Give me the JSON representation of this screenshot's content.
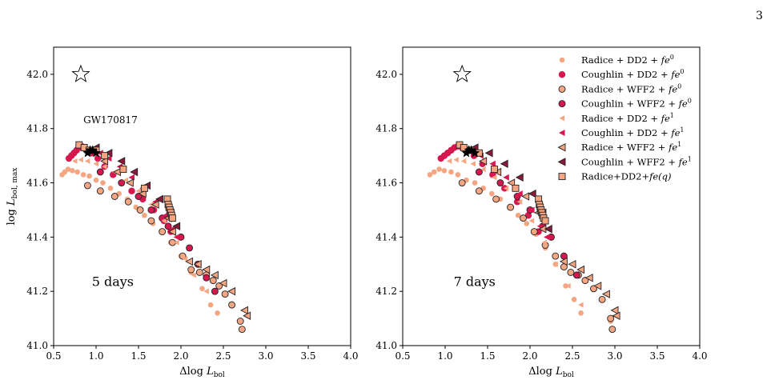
{
  "page_number": "3",
  "chart_data": [
    {
      "type": "scatter",
      "title": "",
      "xlabel": "Δlog L_bol",
      "ylabel": "log L_bol, max",
      "xlim": [
        0.5,
        4.0
      ],
      "ylim": [
        41.0,
        42.1
      ],
      "xticks": [
        "0.5",
        "1.0",
        "1.5",
        "2.0",
        "2.5",
        "3.0",
        "3.5",
        "4.0"
      ],
      "yticks": [
        "41.0",
        "41.2",
        "41.4",
        "41.6",
        "41.8",
        "42.0"
      ],
      "grid": false,
      "legend": false,
      "annotations": [
        {
          "text": "5 days",
          "x": 0.95,
          "y": 41.22
        },
        {
          "text": "GW170817",
          "x": 0.85,
          "y": 41.82
        }
      ],
      "reference_star": {
        "x": 0.82,
        "y": 42.0
      },
      "series": [
        {
          "name": "Radice + DD2 + fe0",
          "marker": "circle-small",
          "color": "#f4a582",
          "x": [
            0.6,
            0.63,
            0.67,
            0.72,
            0.78,
            0.85,
            0.92,
            1.0,
            1.08,
            1.17,
            1.27,
            1.37,
            1.47,
            1.57,
            1.67,
            1.78,
            1.88,
            2.0,
            2.12,
            2.25,
            2.35,
            2.43
          ],
          "y": [
            41.63,
            41.64,
            41.65,
            41.645,
            41.64,
            41.63,
            41.625,
            41.61,
            41.6,
            41.58,
            41.56,
            41.54,
            41.51,
            41.48,
            41.45,
            41.42,
            41.38,
            41.33,
            41.27,
            41.21,
            41.15,
            41.12
          ]
        },
        {
          "name": "Coughlin + DD2 + fe0",
          "marker": "circle",
          "color": "#d6184f",
          "x": [
            0.68,
            0.71,
            0.74,
            0.77,
            0.8,
            0.83,
            0.86,
            0.9,
            0.95,
            1.02,
            1.1,
            1.2,
            1.3,
            1.42,
            1.55,
            1.68,
            1.8,
            1.88
          ],
          "y": [
            41.69,
            41.7,
            41.71,
            41.72,
            41.73,
            41.735,
            41.73,
            41.72,
            41.71,
            41.69,
            41.66,
            41.63,
            41.6,
            41.57,
            41.54,
            41.5,
            41.46,
            41.42
          ]
        },
        {
          "name": "Radice + WFF2 + fe0",
          "marker": "circle-outline",
          "color": "#f4a582",
          "x": [
            0.9,
            1.05,
            1.22,
            1.38,
            1.52,
            1.65,
            1.78,
            1.9,
            2.02,
            2.12,
            2.22,
            2.3,
            2.38,
            2.45,
            2.52,
            2.6,
            2.7,
            2.72
          ],
          "y": [
            41.59,
            41.57,
            41.55,
            41.53,
            41.5,
            41.46,
            41.42,
            41.38,
            41.33,
            41.28,
            41.27,
            41.26,
            41.24,
            41.22,
            41.19,
            41.15,
            41.09,
            41.06
          ]
        },
        {
          "name": "Coughlin + WFF2 + fe0",
          "marker": "circle-outline",
          "color": "#d6184f",
          "x": [
            1.05,
            1.3,
            1.5,
            1.65,
            1.78,
            1.85,
            2.0,
            2.1,
            2.2,
            2.3,
            2.4
          ],
          "y": [
            41.64,
            41.6,
            41.55,
            41.5,
            41.47,
            41.44,
            41.4,
            41.36,
            41.3,
            41.25,
            41.2
          ]
        },
        {
          "name": "Radice + DD2 + fe1",
          "marker": "triangle-left-small",
          "color": "#f4a582",
          "x": [
            0.75,
            0.82,
            0.9,
            1.0,
            1.1,
            1.22,
            1.35,
            1.5,
            1.65,
            1.8,
            1.95,
            2.05,
            2.15,
            2.3
          ],
          "y": [
            41.68,
            41.685,
            41.68,
            41.67,
            41.66,
            41.64,
            41.61,
            41.57,
            41.52,
            41.46,
            41.38,
            41.32,
            41.26,
            41.2
          ]
        },
        {
          "name": "Coughlin + DD2 + fe1",
          "marker": "triangle-left",
          "color": "#d6184f",
          "x": [
            0.95,
            1.05,
            1.15,
            1.28,
            1.42,
            1.55,
            1.7,
            1.82,
            1.9,
            1.95
          ],
          "y": [
            41.72,
            41.71,
            41.69,
            41.66,
            41.62,
            41.58,
            41.53,
            41.48,
            41.43,
            41.4
          ]
        },
        {
          "name": "Radice + WFF2 + fe1",
          "marker": "triangle-left-outline",
          "color": "#f4a582",
          "x": [
            0.95,
            1.1,
            1.25,
            1.4,
            1.55,
            1.7,
            1.85,
            1.9,
            2.1,
            2.2,
            2.3,
            2.4,
            2.5,
            2.6,
            2.75,
            2.78
          ],
          "y": [
            41.72,
            41.68,
            41.64,
            41.6,
            41.56,
            41.52,
            41.47,
            41.42,
            41.31,
            41.3,
            41.28,
            41.26,
            41.23,
            41.2,
            41.13,
            41.11
          ]
        },
        {
          "name": "Coughlin + WFF2 + fe1",
          "marker": "triangle-left-outline",
          "color": "#8b1a3a",
          "x": [
            1.0,
            1.15,
            1.3,
            1.45,
            1.6,
            1.75,
            1.88,
            1.95
          ],
          "y": [
            41.73,
            41.71,
            41.68,
            41.64,
            41.59,
            41.54,
            41.49,
            41.44
          ]
        },
        {
          "name": "Radice+DD2+fe(q)",
          "marker": "square-outline",
          "color": "#f4a582",
          "x": [
            0.8,
            0.86,
            0.92,
            1.0,
            1.1,
            1.32,
            1.57,
            1.84,
            1.85,
            1.86,
            1.87,
            1.88,
            1.89,
            1.9
          ],
          "y": [
            41.74,
            41.73,
            41.72,
            41.72,
            41.7,
            41.65,
            41.58,
            41.54,
            41.52,
            41.51,
            41.5,
            41.49,
            41.48,
            41.47
          ]
        }
      ],
      "gw_points": {
        "x": [
          0.9,
          0.93,
          0.96,
          1.0
        ],
        "y": [
          41.71,
          41.72,
          41.72,
          41.71
        ]
      }
    },
    {
      "type": "scatter",
      "title": "",
      "xlabel": "Δlog L_bol",
      "ylabel": "",
      "xlim": [
        0.5,
        4.0
      ],
      "ylim": [
        41.0,
        42.1
      ],
      "xticks": [
        "0.5",
        "1.0",
        "1.5",
        "2.0",
        "2.5",
        "3.0",
        "3.5",
        "4.0"
      ],
      "yticks": [
        "41.0",
        "41.2",
        "41.4",
        "41.6",
        "41.8",
        "42.0"
      ],
      "grid": false,
      "legend": "top-right",
      "annotations": [
        {
          "text": "7 days",
          "x": 1.1,
          "y": 41.22
        }
      ],
      "reference_star": {
        "x": 1.2,
        "y": 42.0
      },
      "series": [
        {
          "name": "Radice + DD2 + fe0",
          "marker": "circle-small",
          "color": "#f4a582",
          "x": [
            0.82,
            0.87,
            0.93,
            0.99,
            1.07,
            1.15,
            1.25,
            1.35,
            1.45,
            1.55,
            1.65,
            1.76,
            1.86,
            1.96,
            2.07,
            2.18,
            2.3,
            2.42,
            2.52,
            2.6,
            2.95
          ],
          "y": [
            41.63,
            41.64,
            41.65,
            41.645,
            41.64,
            41.63,
            41.61,
            41.6,
            41.58,
            41.56,
            41.54,
            41.51,
            41.48,
            41.45,
            41.41,
            41.36,
            41.3,
            41.22,
            41.17,
            41.12,
            41.09
          ]
        },
        {
          "name": "Coughlin + DD2 + fe0",
          "marker": "circle",
          "color": "#d6184f",
          "x": [
            0.95,
            0.99,
            1.03,
            1.07,
            1.11,
            1.15,
            1.2,
            1.26,
            1.34,
            1.44,
            1.56,
            1.7,
            1.85,
            1.98,
            2.1
          ],
          "y": [
            41.69,
            41.7,
            41.71,
            41.72,
            41.73,
            41.735,
            41.73,
            41.72,
            41.7,
            41.67,
            41.63,
            41.58,
            41.53,
            41.48,
            41.42
          ]
        },
        {
          "name": "Radice + WFF2 + fe0",
          "marker": "circle-outline",
          "color": "#f4a582",
          "x": [
            1.2,
            1.4,
            1.6,
            1.77,
            1.92,
            2.05,
            2.18,
            2.3,
            2.4,
            2.48,
            2.57,
            2.65,
            2.75,
            2.85,
            2.95,
            2.97
          ],
          "y": [
            41.6,
            41.57,
            41.54,
            41.51,
            41.47,
            41.42,
            41.37,
            41.33,
            41.29,
            41.27,
            41.26,
            41.24,
            41.21,
            41.17,
            41.1,
            41.06
          ]
        },
        {
          "name": "Coughlin + WFF2 + fe0",
          "marker": "circle-outline",
          "color": "#d6184f",
          "x": [
            1.4,
            1.65,
            1.85,
            2.0,
            2.15,
            2.25,
            2.4,
            2.55
          ],
          "y": [
            41.64,
            41.6,
            41.55,
            41.5,
            41.44,
            41.4,
            41.33,
            41.26
          ]
        },
        {
          "name": "Radice + DD2 + fe1",
          "marker": "triangle-left-small",
          "color": "#f4a582",
          "x": [
            1.05,
            1.13,
            1.22,
            1.33,
            1.45,
            1.58,
            1.72,
            1.88,
            2.02,
            2.17,
            2.3,
            2.45,
            2.6
          ],
          "y": [
            41.68,
            41.685,
            41.68,
            41.67,
            41.65,
            41.62,
            41.58,
            41.53,
            41.46,
            41.38,
            41.3,
            41.22,
            41.15
          ]
        },
        {
          "name": "Coughlin + DD2 + fe1",
          "marker": "triangle-left",
          "color": "#d6184f",
          "x": [
            1.3,
            1.42,
            1.56,
            1.72,
            1.88,
            2.02,
            2.12,
            2.2
          ],
          "y": [
            41.72,
            41.7,
            41.67,
            41.62,
            41.56,
            41.5,
            41.44,
            41.4
          ]
        },
        {
          "name": "Radice + WFF2 + fe1",
          "marker": "triangle-left-outline",
          "color": "#f4a582",
          "x": [
            1.3,
            1.45,
            1.62,
            1.78,
            1.95,
            2.1,
            2.15,
            2.4,
            2.5,
            2.6,
            2.7,
            2.8,
            2.9,
            3.0,
            3.02
          ],
          "y": [
            41.72,
            41.68,
            41.64,
            41.6,
            41.55,
            41.49,
            41.43,
            41.31,
            41.3,
            41.28,
            41.25,
            41.22,
            41.19,
            41.13,
            41.11
          ]
        },
        {
          "name": "Coughlin + WFF2 + fe1",
          "marker": "triangle-left-outline",
          "color": "#8b1a3a",
          "x": [
            1.35,
            1.52,
            1.7,
            1.88,
            2.03,
            2.15,
            2.22
          ],
          "y": [
            41.73,
            41.71,
            41.67,
            41.62,
            41.56,
            41.49,
            41.43
          ]
        },
        {
          "name": "Radice+DD2+fe(q)",
          "marker": "square-outline",
          "color": "#f4a582",
          "x": [
            1.17,
            1.22,
            1.3,
            1.4,
            1.58,
            1.83,
            2.1,
            2.11,
            2.12,
            2.13,
            2.14,
            2.15,
            2.16,
            2.18
          ],
          "y": [
            41.74,
            41.73,
            41.72,
            41.71,
            41.65,
            41.58,
            41.54,
            41.52,
            41.51,
            41.5,
            41.49,
            41.48,
            41.47,
            41.46
          ]
        }
      ],
      "gw_points": {
        "x": [
          1.25,
          1.28,
          1.31,
          1.35
        ],
        "y": [
          41.71,
          41.72,
          41.72,
          41.71
        ]
      }
    }
  ],
  "legend_entries": [
    {
      "base": "Radice + DD2 + ",
      "fe": "fe",
      "sup": "0",
      "marker": "circle-small",
      "color": "#f4a582"
    },
    {
      "base": "Coughlin + DD2 + ",
      "fe": "fe",
      "sup": "0",
      "marker": "circle",
      "color": "#d6184f"
    },
    {
      "base": "Radice + WFF2 + ",
      "fe": "fe",
      "sup": "0",
      "marker": "circle-outline",
      "color": "#f4a582"
    },
    {
      "base": "Coughlin + WFF2 + ",
      "fe": "fe",
      "sup": "0",
      "marker": "circle-outline",
      "color": "#d6184f"
    },
    {
      "base": "Radice + DD2 + ",
      "fe": "fe",
      "sup": "1",
      "marker": "triangle-left-small",
      "color": "#f4a582"
    },
    {
      "base": "Coughlin + DD2 + ",
      "fe": "fe",
      "sup": "1",
      "marker": "triangle-left",
      "color": "#d6184f"
    },
    {
      "base": "Radice + WFF2 + ",
      "fe": "fe",
      "sup": "1",
      "marker": "triangle-left-outline",
      "color": "#f4a582"
    },
    {
      "base": "Coughlin + WFF2 + ",
      "fe": "fe",
      "sup": "1",
      "marker": "triangle-left-outline",
      "color": "#8b1a3a"
    },
    {
      "base": "Radice+DD2+",
      "fe": "fe(q)",
      "sup": "",
      "marker": "square-outline",
      "color": "#f4a582"
    }
  ],
  "axis_labels": {
    "x_main": "Δlog ",
    "x_L": "L",
    "x_sub": "bol",
    "y_main": "log ",
    "y_L": "L",
    "y_sub": "bol, max"
  }
}
